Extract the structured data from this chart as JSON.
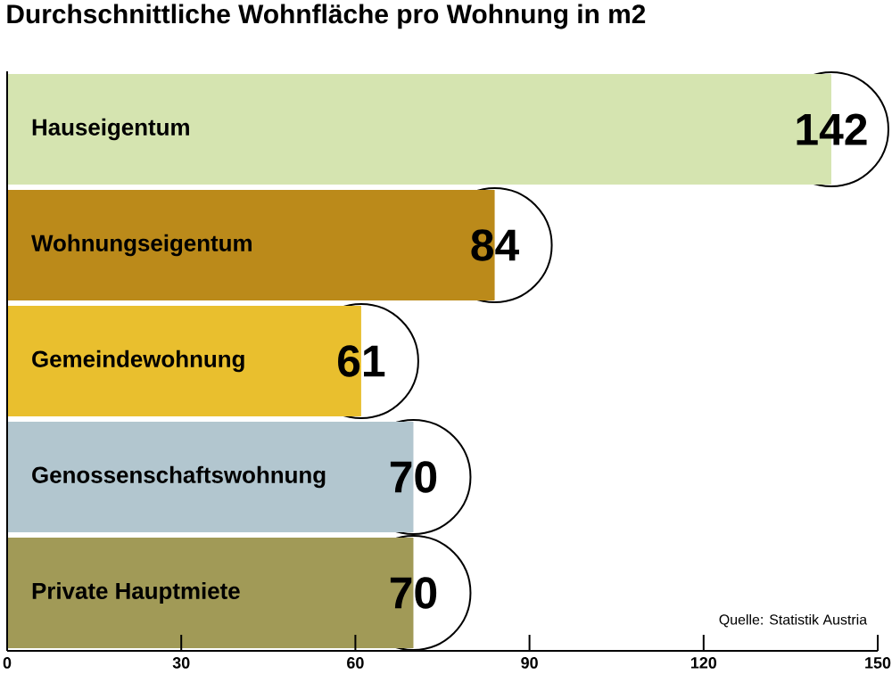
{
  "chart_data": {
    "type": "bar",
    "orientation": "horizontal",
    "title": "Durchschnittliche Wohnfläche pro Wohnung in m2",
    "categories": [
      "Hauseigentum",
      "Wohnungseigentum",
      "Gemeindewohnung",
      "Genossenschaftswohnung",
      "Private Hauptmiete"
    ],
    "values": [
      142,
      84,
      61,
      70,
      70
    ],
    "colors": [
      "#d5e4b0",
      "#bb8a1a",
      "#e9bf2e",
      "#b2c6cf",
      "#a19a57"
    ],
    "xlim": [
      0,
      150
    ],
    "xticks": [
      0,
      30,
      60,
      90,
      120,
      150
    ],
    "data_labels": true,
    "grid": false,
    "annotations": [
      "Quelle: Statistik Austria"
    ]
  }
}
